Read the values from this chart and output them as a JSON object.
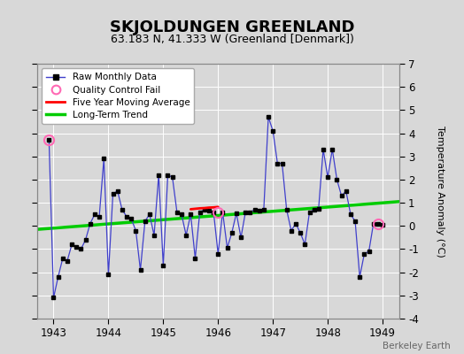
{
  "title": "SKJOLDUNGEN GREENLAND",
  "subtitle": "63.183 N, 41.333 W (Greenland [Denmark])",
  "ylabel": "Temperature Anomaly (°C)",
  "watermark": "Berkeley Earth",
  "xlim": [
    1942.7,
    1949.3
  ],
  "ylim": [
    -4,
    7
  ],
  "yticks": [
    -4,
    -3,
    -2,
    -1,
    0,
    1,
    2,
    3,
    4,
    5,
    6,
    7
  ],
  "xticks": [
    1943,
    1944,
    1945,
    1946,
    1947,
    1948,
    1949
  ],
  "bg_color": "#d8d8d8",
  "plot_bg_color": "#d8d8d8",
  "raw_color": "#4040cc",
  "raw_marker_color": "#000000",
  "qc_fail_color": "#ff69b4",
  "ma_color": "#ff0000",
  "trend_color": "#00cc00",
  "raw_data": [
    [
      1942.917,
      3.7
    ],
    [
      1943.0,
      -3.1
    ],
    [
      1943.083,
      -2.2
    ],
    [
      1943.167,
      -1.4
    ],
    [
      1943.25,
      -1.5
    ],
    [
      1943.333,
      -0.8
    ],
    [
      1943.417,
      -0.9
    ],
    [
      1943.5,
      -1.0
    ],
    [
      1943.583,
      -0.6
    ],
    [
      1943.667,
      0.1
    ],
    [
      1943.75,
      0.5
    ],
    [
      1943.833,
      0.4
    ],
    [
      1943.917,
      2.9
    ],
    [
      1944.0,
      -2.1
    ],
    [
      1944.083,
      1.4
    ],
    [
      1944.167,
      1.5
    ],
    [
      1944.25,
      0.7
    ],
    [
      1944.333,
      0.4
    ],
    [
      1944.417,
      0.3
    ],
    [
      1944.5,
      -0.2
    ],
    [
      1944.583,
      -1.9
    ],
    [
      1944.667,
      0.2
    ],
    [
      1944.75,
      0.5
    ],
    [
      1944.833,
      -0.4
    ],
    [
      1944.917,
      2.2
    ],
    [
      1945.0,
      -1.7
    ],
    [
      1945.083,
      2.2
    ],
    [
      1945.167,
      2.1
    ],
    [
      1945.25,
      0.6
    ],
    [
      1945.333,
      0.5
    ],
    [
      1945.417,
      -0.4
    ],
    [
      1945.5,
      0.5
    ],
    [
      1945.583,
      -1.4
    ],
    [
      1945.667,
      0.6
    ],
    [
      1945.75,
      0.7
    ],
    [
      1945.833,
      0.65
    ],
    [
      1945.917,
      0.6
    ],
    [
      1946.0,
      -1.2
    ],
    [
      1946.083,
      0.6
    ],
    [
      1946.167,
      -0.95
    ],
    [
      1946.25,
      -0.3
    ],
    [
      1946.333,
      0.55
    ],
    [
      1946.417,
      -0.5
    ],
    [
      1946.5,
      0.6
    ],
    [
      1946.583,
      0.6
    ],
    [
      1946.667,
      0.7
    ],
    [
      1946.75,
      0.65
    ],
    [
      1946.833,
      0.7
    ],
    [
      1946.917,
      4.7
    ],
    [
      1947.0,
      4.1
    ],
    [
      1947.083,
      2.7
    ],
    [
      1947.167,
      2.7
    ],
    [
      1947.25,
      0.7
    ],
    [
      1947.333,
      -0.2
    ],
    [
      1947.417,
      0.1
    ],
    [
      1947.5,
      -0.3
    ],
    [
      1947.583,
      -0.8
    ],
    [
      1947.667,
      0.6
    ],
    [
      1947.75,
      0.7
    ],
    [
      1947.833,
      0.75
    ],
    [
      1947.917,
      3.3
    ],
    [
      1948.0,
      2.1
    ],
    [
      1948.083,
      3.3
    ],
    [
      1948.167,
      2.0
    ],
    [
      1948.25,
      1.3
    ],
    [
      1948.333,
      1.5
    ],
    [
      1948.417,
      0.5
    ],
    [
      1948.5,
      0.2
    ],
    [
      1948.583,
      -2.2
    ],
    [
      1948.667,
      -1.2
    ],
    [
      1948.75,
      -1.1
    ],
    [
      1948.833,
      0.1
    ],
    [
      1948.917,
      0.1
    ],
    [
      1949.0,
      0.05
    ]
  ],
  "qc_fail_points": [
    [
      1942.917,
      3.7
    ],
    [
      1946.0,
      0.6
    ],
    [
      1948.917,
      0.1
    ]
  ],
  "moving_avg_x": [
    1945.5,
    1945.583,
    1945.667,
    1945.75,
    1945.833,
    1945.917,
    1946.0
  ],
  "moving_avg_y": [
    0.72,
    0.74,
    0.76,
    0.77,
    0.79,
    0.8,
    0.82
  ],
  "trend_x": [
    1942.7,
    1949.3
  ],
  "trend_y": [
    -0.15,
    1.05
  ],
  "grid_color": "#ffffff",
  "title_fontsize": 13,
  "subtitle_fontsize": 9,
  "label_fontsize": 8,
  "tick_fontsize": 8.5
}
